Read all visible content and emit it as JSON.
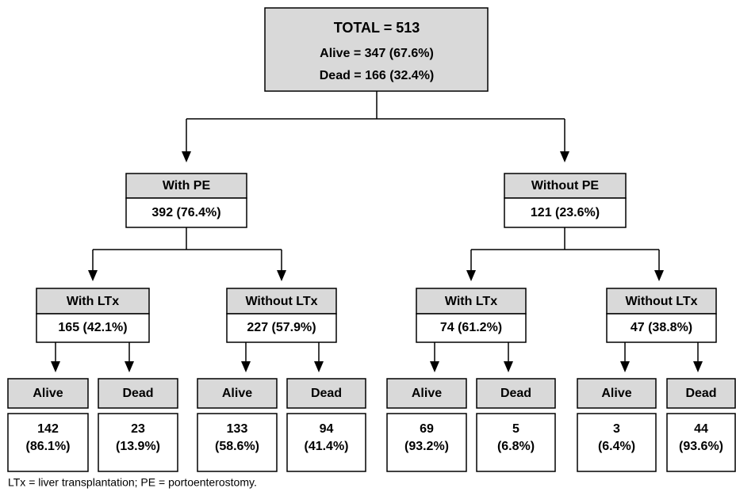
{
  "root": {
    "lines": [
      "TOTAL = 513",
      "Alive = 347 (67.6%)",
      "Dead = 166 (32.4%)"
    ]
  },
  "level1": [
    {
      "title": "With PE",
      "value": "392 (76.4%)"
    },
    {
      "title": "Without PE",
      "value": "121 (23.6%)"
    }
  ],
  "level2": [
    {
      "title": "With LTx",
      "value": "165 (42.1%)"
    },
    {
      "title": "Without LTx",
      "value": "227 (57.9%)"
    },
    {
      "title": "With LTx",
      "value": "74 (61.2%)"
    },
    {
      "title": "Without LTx",
      "value": "47 (38.8%)"
    }
  ],
  "level3": [
    {
      "title": "Alive",
      "lines": [
        "142",
        "(86.1%)"
      ]
    },
    {
      "title": "Dead",
      "lines": [
        "23",
        "(13.9%)"
      ]
    },
    {
      "title": "Alive",
      "lines": [
        "133",
        "(58.6%)"
      ]
    },
    {
      "title": "Dead",
      "lines": [
        "94",
        "(41.4%)"
      ]
    },
    {
      "title": "Alive",
      "lines": [
        "69",
        "(93.2%)"
      ]
    },
    {
      "title": "Dead",
      "lines": [
        "5",
        "(6.8%)"
      ]
    },
    {
      "title": "Alive",
      "lines": [
        "3",
        "(6.4%)"
      ]
    },
    {
      "title": "Dead",
      "lines": [
        "44",
        "(93.6%)"
      ]
    }
  ],
  "footnote": "LTx = liver transplantation; PE = portoenterostomy."
}
